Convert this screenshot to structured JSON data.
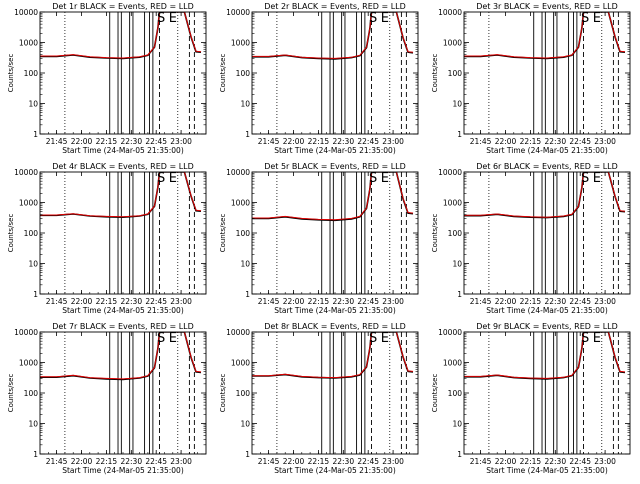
{
  "chart_data": [
    {
      "type": "line",
      "title": "Det 1r BLACK = Events, RED = LLD",
      "xlabel": "Start Time (24-Mar-05 21:35:00)",
      "ylabel": "Counts/sec",
      "y_scale": "log",
      "ylim": [
        1,
        10000
      ],
      "x_ticks": [
        "21:45",
        "22:00",
        "22:15",
        "22:30",
        "22:45",
        "23:00"
      ],
      "region_letters": [
        "S",
        "E"
      ],
      "series": [
        {
          "name": "Events",
          "color": "#000000",
          "x": [
            "21:35",
            "21:45",
            "21:55",
            "22:05",
            "22:15",
            "22:25",
            "22:35",
            "22:40",
            "22:44",
            "22:46",
            "22:47",
            "22:50",
            "22:55",
            "22:58",
            "23:02",
            "23:06",
            "23:09",
            "23:12"
          ],
          "y": [
            350,
            350,
            390,
            330,
            310,
            300,
            330,
            380,
            700,
            3000,
            10000,
            10000,
            10000,
            10000,
            10000,
            1500,
            500,
            480
          ]
        },
        {
          "name": "LLD",
          "color": "#e00000",
          "x": [
            "21:35",
            "21:45",
            "21:55",
            "22:05",
            "22:15",
            "22:25",
            "22:35",
            "22:40",
            "22:44",
            "22:46",
            "22:47",
            "22:50",
            "22:55",
            "22:58",
            "23:02",
            "23:06",
            "23:09",
            "23:12"
          ],
          "y": [
            360,
            360,
            400,
            340,
            320,
            310,
            340,
            390,
            720,
            3100,
            10000,
            10000,
            10000,
            10000,
            10000,
            1550,
            520,
            500
          ]
        }
      ]
    },
    {
      "type": "line",
      "title": "Det 2r BLACK = Events, RED = LLD",
      "xlabel": "Start Time (24-Mar-05 21:35:00)",
      "ylabel": "Counts/sec",
      "y_scale": "log",
      "ylim": [
        1,
        10000
      ],
      "x_ticks": [
        "21:45",
        "22:00",
        "22:15",
        "22:30",
        "22:45",
        "23:00"
      ],
      "region_letters": [
        "S",
        "E"
      ],
      "series": [
        {
          "name": "Events",
          "color": "#000000",
          "x": [
            "21:35",
            "21:45",
            "21:55",
            "22:05",
            "22:15",
            "22:25",
            "22:35",
            "22:40",
            "22:44",
            "22:46",
            "22:47",
            "22:50",
            "22:55",
            "22:58",
            "23:02",
            "23:06",
            "23:09",
            "23:12"
          ],
          "y": [
            340,
            340,
            380,
            320,
            300,
            290,
            320,
            370,
            680,
            2900,
            10000,
            10000,
            10000,
            10000,
            10000,
            1400,
            480,
            460
          ]
        },
        {
          "name": "LLD",
          "color": "#e00000",
          "x": [
            "21:35",
            "21:45",
            "21:55",
            "22:05",
            "22:15",
            "22:25",
            "22:35",
            "22:40",
            "22:44",
            "22:46",
            "22:47",
            "22:50",
            "22:55",
            "22:58",
            "23:02",
            "23:06",
            "23:09",
            "23:12"
          ],
          "y": [
            350,
            350,
            390,
            330,
            310,
            300,
            330,
            380,
            700,
            3000,
            10000,
            10000,
            10000,
            10000,
            10000,
            1450,
            500,
            480
          ]
        }
      ]
    },
    {
      "type": "line",
      "title": "Det 3r BLACK = Events, RED = LLD",
      "xlabel": "Start Time (24-Mar-05 21:35:00)",
      "ylabel": "Counts/sec",
      "y_scale": "log",
      "ylim": [
        1,
        10000
      ],
      "x_ticks": [
        "21:45",
        "22:00",
        "22:15",
        "22:30",
        "22:45",
        "23:00"
      ],
      "region_letters": [
        "S",
        "E"
      ],
      "series": [
        {
          "name": "Events",
          "color": "#000000",
          "x": [
            "21:35",
            "21:45",
            "21:55",
            "22:05",
            "22:15",
            "22:25",
            "22:35",
            "22:40",
            "22:44",
            "22:46",
            "22:47",
            "22:50",
            "22:55",
            "22:58",
            "23:02",
            "23:06",
            "23:09",
            "23:12"
          ],
          "y": [
            350,
            350,
            390,
            330,
            310,
            300,
            330,
            380,
            700,
            3000,
            10000,
            10000,
            10000,
            10000,
            10000,
            1500,
            500,
            480
          ]
        },
        {
          "name": "LLD",
          "color": "#e00000",
          "x": [
            "21:35",
            "21:45",
            "21:55",
            "22:05",
            "22:15",
            "22:25",
            "22:35",
            "22:40",
            "22:44",
            "22:46",
            "22:47",
            "22:50",
            "22:55",
            "22:58",
            "23:02",
            "23:06",
            "23:09",
            "23:12"
          ],
          "y": [
            360,
            360,
            400,
            340,
            320,
            310,
            340,
            390,
            720,
            3100,
            10000,
            10000,
            10000,
            10000,
            10000,
            1550,
            520,
            500
          ]
        }
      ]
    },
    {
      "type": "line",
      "title": "Det 4r BLACK = Events, RED = LLD",
      "xlabel": "Start Time (24-Mar-05 21:35:00)",
      "ylabel": "Counts/sec",
      "y_scale": "log",
      "ylim": [
        1,
        10000
      ],
      "x_ticks": [
        "21:45",
        "22:00",
        "22:15",
        "22:30",
        "22:45",
        "23:00"
      ],
      "region_letters": [
        "S",
        "E"
      ],
      "series": [
        {
          "name": "Events",
          "color": "#000000",
          "x": [
            "21:35",
            "21:45",
            "21:55",
            "22:05",
            "22:15",
            "22:25",
            "22:35",
            "22:40",
            "22:44",
            "22:46",
            "22:47",
            "22:50",
            "22:55",
            "22:58",
            "23:02",
            "23:06",
            "23:09",
            "23:12"
          ],
          "y": [
            380,
            380,
            420,
            360,
            340,
            330,
            360,
            410,
            750,
            3200,
            10000,
            10000,
            10000,
            10000,
            10000,
            1600,
            540,
            520
          ]
        },
        {
          "name": "LLD",
          "color": "#e00000",
          "x": [
            "21:35",
            "21:45",
            "21:55",
            "22:05",
            "22:15",
            "22:25",
            "22:35",
            "22:40",
            "22:44",
            "22:46",
            "22:47",
            "22:50",
            "22:55",
            "22:58",
            "23:02",
            "23:06",
            "23:09",
            "23:12"
          ],
          "y": [
            390,
            390,
            430,
            370,
            350,
            340,
            370,
            420,
            770,
            3300,
            10000,
            10000,
            10000,
            10000,
            10000,
            1650,
            560,
            540
          ]
        }
      ]
    },
    {
      "type": "line",
      "title": "Det 5r BLACK = Events, RED = LLD",
      "xlabel": "Start Time (24-Mar-05 21:35:00)",
      "ylabel": "Counts/sec",
      "y_scale": "log",
      "ylim": [
        1,
        10000
      ],
      "x_ticks": [
        "21:45",
        "22:00",
        "22:15",
        "22:30",
        "22:45",
        "23:00"
      ],
      "region_letters": [
        "S",
        "E"
      ],
      "series": [
        {
          "name": "Events",
          "color": "#000000",
          "x": [
            "21:35",
            "21:45",
            "21:55",
            "22:05",
            "22:15",
            "22:25",
            "22:35",
            "22:40",
            "22:44",
            "22:46",
            "22:47",
            "22:50",
            "22:55",
            "22:58",
            "23:02",
            "23:06",
            "23:09",
            "23:12"
          ],
          "y": [
            300,
            300,
            340,
            290,
            270,
            260,
            290,
            340,
            640,
            2800,
            10000,
            10000,
            10000,
            10000,
            10000,
            1300,
            450,
            430
          ]
        },
        {
          "name": "LLD",
          "color": "#e00000",
          "x": [
            "21:35",
            "21:45",
            "21:55",
            "22:05",
            "22:15",
            "22:25",
            "22:35",
            "22:40",
            "22:44",
            "22:46",
            "22:47",
            "22:50",
            "22:55",
            "22:58",
            "23:02",
            "23:06",
            "23:09",
            "23:12"
          ],
          "y": [
            310,
            310,
            350,
            300,
            280,
            270,
            300,
            350,
            660,
            2900,
            10000,
            10000,
            10000,
            10000,
            10000,
            1350,
            470,
            450
          ]
        }
      ]
    },
    {
      "type": "line",
      "title": "Det 6r BLACK = Events, RED = LLD",
      "xlabel": "Start Time (24-Mar-05 21:35:00)",
      "ylabel": "Counts/sec",
      "y_scale": "log",
      "ylim": [
        1,
        10000
      ],
      "x_ticks": [
        "21:45",
        "22:00",
        "22:15",
        "22:30",
        "22:45",
        "23:00"
      ],
      "region_letters": [
        "S",
        "E"
      ],
      "series": [
        {
          "name": "Events",
          "color": "#000000",
          "x": [
            "21:35",
            "21:45",
            "21:55",
            "22:05",
            "22:15",
            "22:25",
            "22:35",
            "22:40",
            "22:44",
            "22:46",
            "22:47",
            "22:50",
            "22:55",
            "22:58",
            "23:02",
            "23:06",
            "23:09",
            "23:12"
          ],
          "y": [
            370,
            370,
            410,
            350,
            330,
            320,
            350,
            400,
            730,
            3100,
            10000,
            10000,
            10000,
            10000,
            10000,
            1550,
            520,
            500
          ]
        },
        {
          "name": "LLD",
          "color": "#e00000",
          "x": [
            "21:35",
            "21:45",
            "21:55",
            "22:05",
            "22:15",
            "22:25",
            "22:35",
            "22:40",
            "22:44",
            "22:46",
            "22:47",
            "22:50",
            "22:55",
            "22:58",
            "23:02",
            "23:06",
            "23:09",
            "23:12"
          ],
          "y": [
            380,
            380,
            420,
            360,
            340,
            330,
            360,
            410,
            750,
            3200,
            10000,
            10000,
            10000,
            10000,
            10000,
            1600,
            540,
            520
          ]
        }
      ]
    },
    {
      "type": "line",
      "title": "Det 7r BLACK = Events, RED = LLD",
      "xlabel": "Start Time (24-Mar-05 21:35:00)",
      "ylabel": "Counts/sec",
      "y_scale": "log",
      "ylim": [
        1,
        10000
      ],
      "x_ticks": [
        "21:45",
        "22:00",
        "22:15",
        "22:30",
        "22:45",
        "23:00"
      ],
      "region_letters": [
        "S",
        "E"
      ],
      "series": [
        {
          "name": "Events",
          "color": "#000000",
          "x": [
            "21:35",
            "21:45",
            "21:55",
            "22:05",
            "22:15",
            "22:25",
            "22:35",
            "22:40",
            "22:44",
            "22:46",
            "22:47",
            "22:50",
            "22:55",
            "22:58",
            "23:02",
            "23:06",
            "23:09",
            "23:12"
          ],
          "y": [
            330,
            330,
            370,
            310,
            290,
            280,
            310,
            360,
            670,
            2900,
            10000,
            10000,
            10000,
            10000,
            10000,
            1450,
            490,
            470
          ]
        },
        {
          "name": "LLD",
          "color": "#e00000",
          "x": [
            "21:35",
            "21:45",
            "21:55",
            "22:05",
            "22:15",
            "22:25",
            "22:35",
            "22:40",
            "22:44",
            "22:46",
            "22:47",
            "22:50",
            "22:55",
            "22:58",
            "23:02",
            "23:06",
            "23:09",
            "23:12"
          ],
          "y": [
            340,
            340,
            380,
            320,
            300,
            290,
            320,
            370,
            690,
            3000,
            10000,
            10000,
            10000,
            10000,
            10000,
            1500,
            510,
            490
          ]
        }
      ]
    },
    {
      "type": "line",
      "title": "Det 8r BLACK = Events, RED = LLD",
      "xlabel": "Start Time (24-Mar-05 21:35:00)",
      "ylabel": "Counts/sec",
      "y_scale": "log",
      "ylim": [
        1,
        10000
      ],
      "x_ticks": [
        "21:45",
        "22:00",
        "22:15",
        "22:30",
        "22:45",
        "23:00"
      ],
      "region_letters": [
        "S",
        "E"
      ],
      "series": [
        {
          "name": "Events",
          "color": "#000000",
          "x": [
            "21:35",
            "21:45",
            "21:55",
            "22:05",
            "22:15",
            "22:25",
            "22:35",
            "22:40",
            "22:44",
            "22:46",
            "22:47",
            "22:50",
            "22:55",
            "22:58",
            "23:02",
            "23:06",
            "23:09",
            "23:12"
          ],
          "y": [
            360,
            360,
            400,
            340,
            320,
            310,
            340,
            390,
            710,
            3000,
            10000,
            10000,
            10000,
            10000,
            10000,
            1500,
            510,
            490
          ]
        },
        {
          "name": "LLD",
          "color": "#e00000",
          "x": [
            "21:35",
            "21:45",
            "21:55",
            "22:05",
            "22:15",
            "22:25",
            "22:35",
            "22:40",
            "22:44",
            "22:46",
            "22:47",
            "22:50",
            "22:55",
            "22:58",
            "23:02",
            "23:06",
            "23:09",
            "23:12"
          ],
          "y": [
            370,
            370,
            410,
            350,
            330,
            320,
            350,
            400,
            730,
            3100,
            10000,
            10000,
            10000,
            10000,
            10000,
            1550,
            530,
            510
          ]
        }
      ]
    },
    {
      "type": "line",
      "title": "Det 9r BLACK = Events, RED = LLD",
      "xlabel": "Start Time (24-Mar-05 21:35:00)",
      "ylabel": "Counts/sec",
      "y_scale": "log",
      "ylim": [
        1,
        10000
      ],
      "x_ticks": [
        "21:45",
        "22:00",
        "22:15",
        "22:30",
        "22:45",
        "23:00"
      ],
      "region_letters": [
        "S",
        "E"
      ],
      "series": [
        {
          "name": "Events",
          "color": "#000000",
          "x": [
            "21:35",
            "21:45",
            "21:55",
            "22:05",
            "22:15",
            "22:25",
            "22:35",
            "22:40",
            "22:44",
            "22:46",
            "22:47",
            "22:50",
            "22:55",
            "22:58",
            "23:02",
            "23:06",
            "23:09",
            "23:12"
          ],
          "y": [
            340,
            340,
            380,
            320,
            300,
            290,
            320,
            370,
            690,
            2950,
            10000,
            10000,
            10000,
            10000,
            10000,
            1450,
            490,
            470
          ]
        },
        {
          "name": "LLD",
          "color": "#e00000",
          "x": [
            "21:35",
            "21:45",
            "21:55",
            "22:05",
            "22:15",
            "22:25",
            "22:35",
            "22:40",
            "22:44",
            "22:46",
            "22:47",
            "22:50",
            "22:55",
            "22:58",
            "23:02",
            "23:06",
            "23:09",
            "23:12"
          ],
          "y": [
            350,
            350,
            390,
            330,
            310,
            300,
            330,
            380,
            710,
            3050,
            10000,
            10000,
            10000,
            10000,
            10000,
            1500,
            510,
            490
          ]
        }
      ]
    }
  ]
}
